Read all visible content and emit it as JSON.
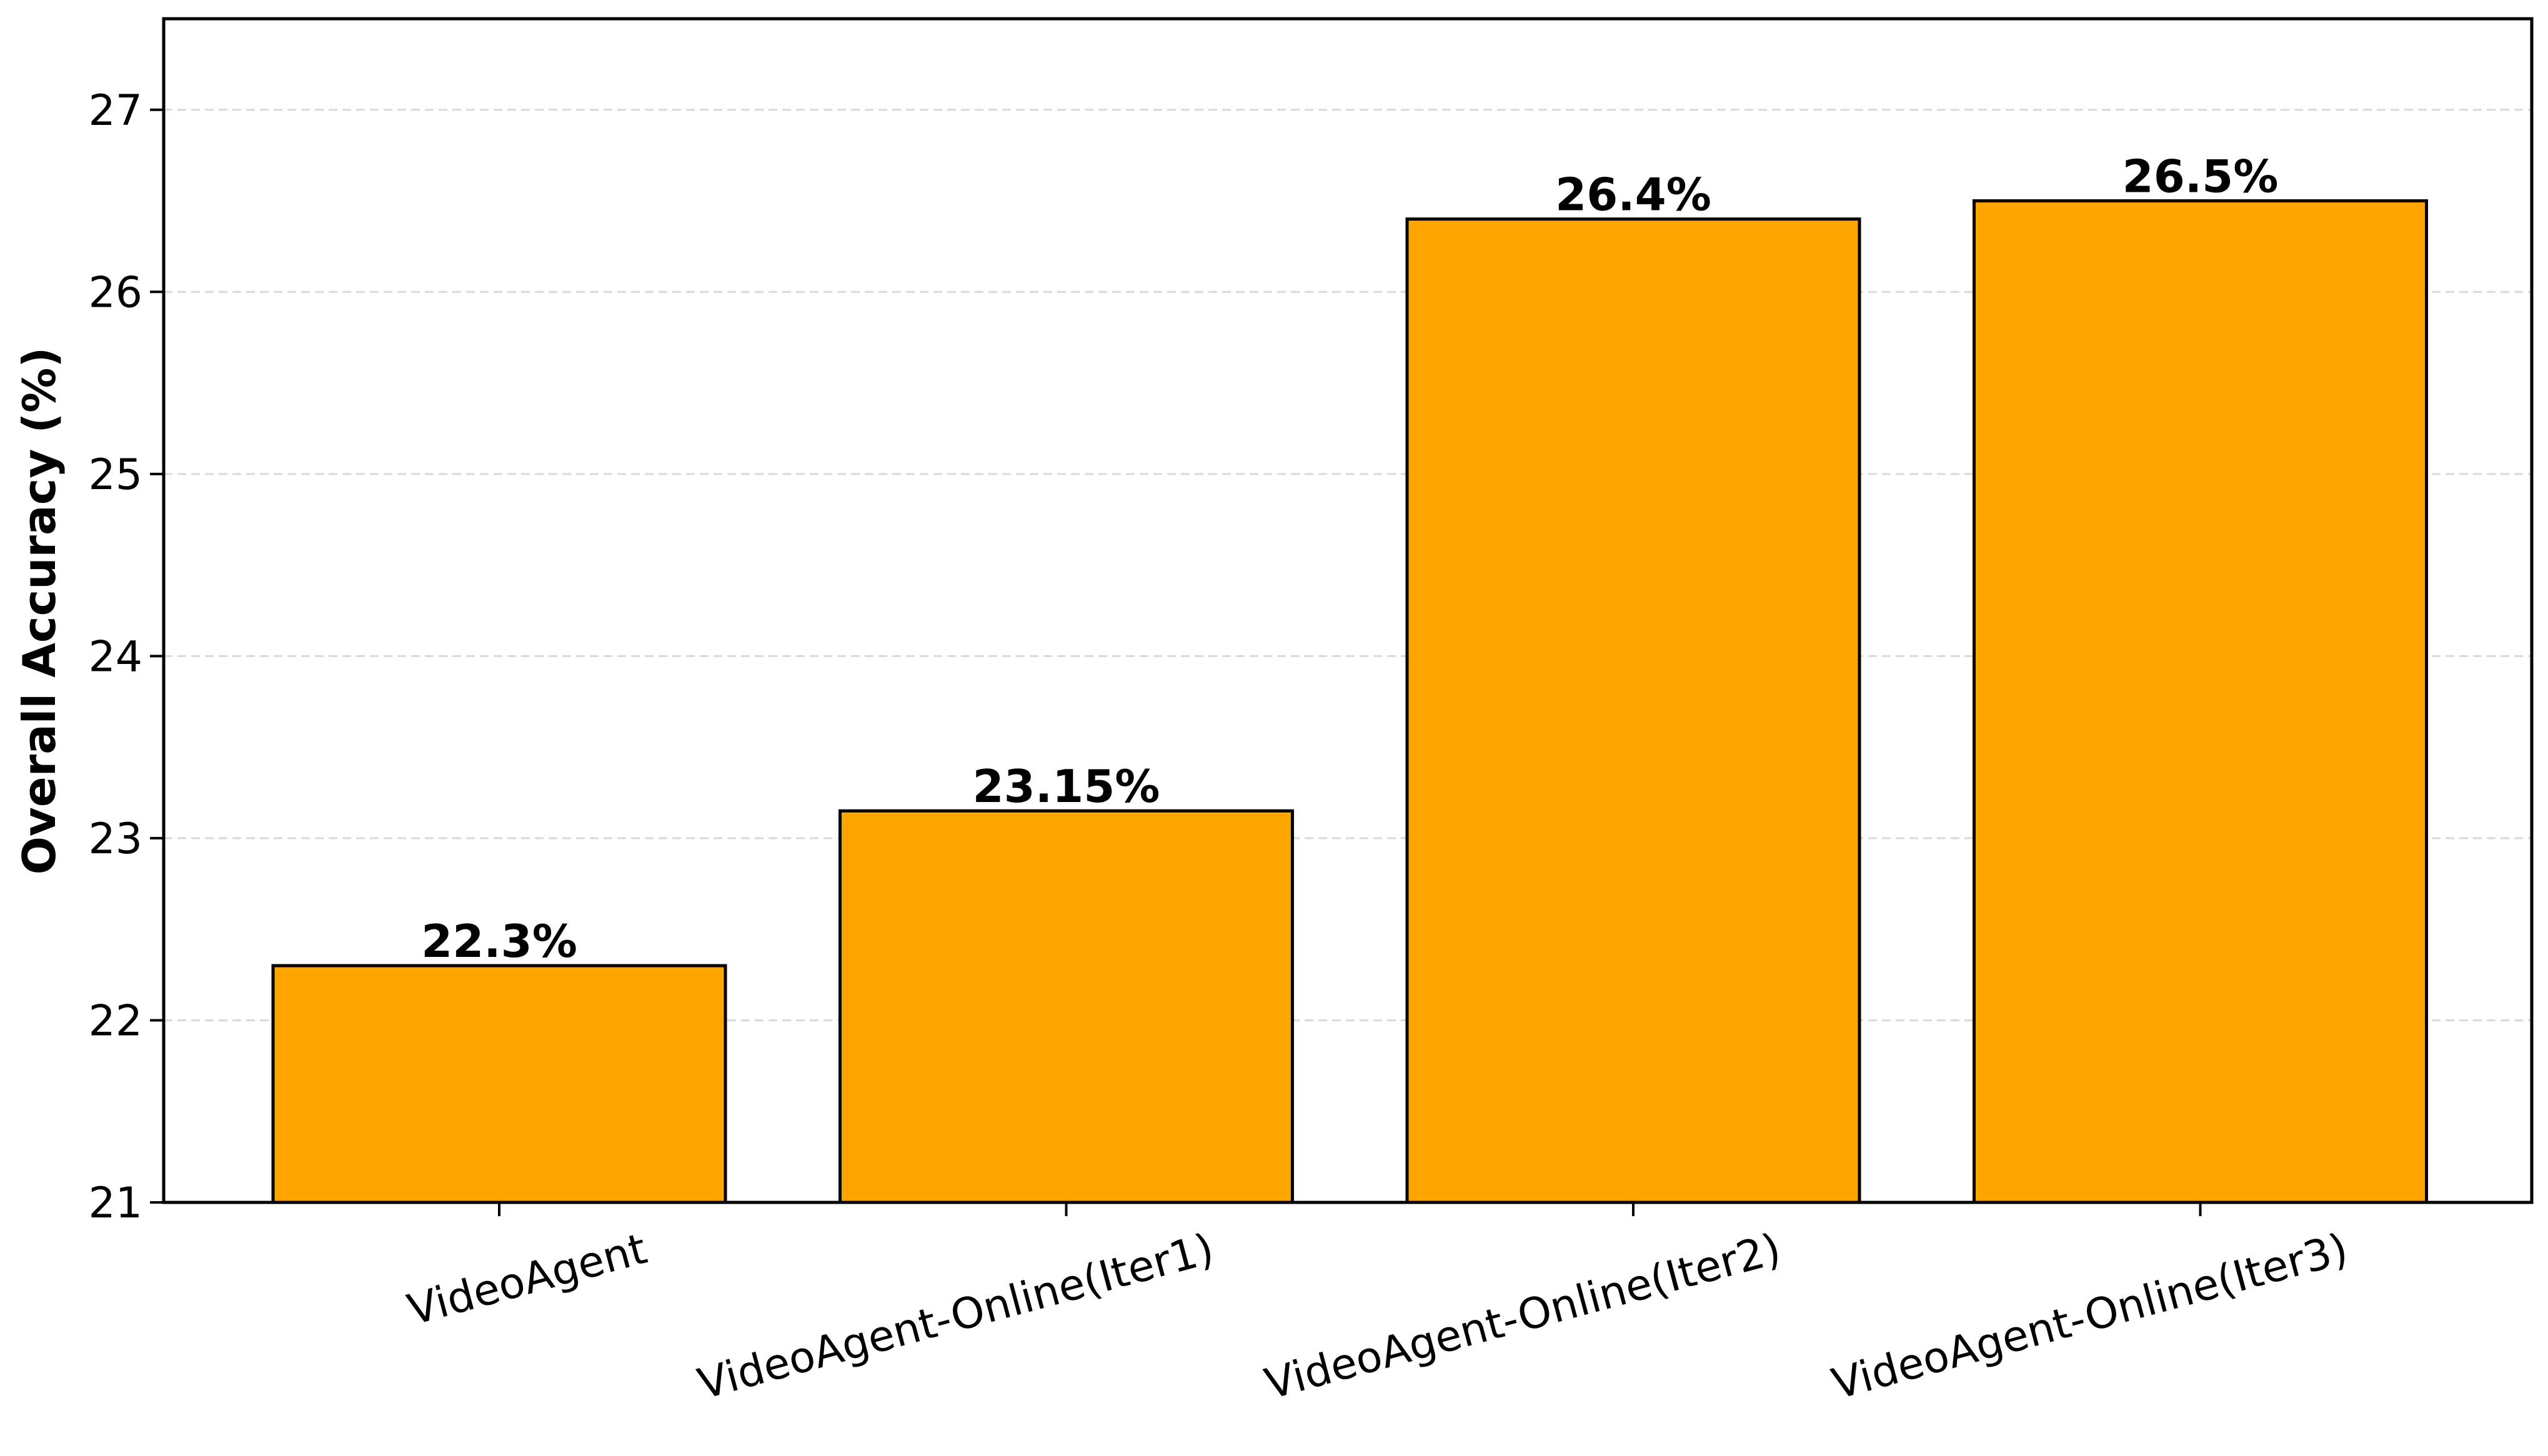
{
  "chart_data": {
    "type": "bar",
    "title": "",
    "xlabel": "",
    "ylabel": "Overall Accuracy (%)",
    "categories": [
      "VideoAgent",
      "VideoAgent-Online(Iter1)",
      "VideoAgent-Online(Iter2)",
      "VideoAgent-Online(Iter3)"
    ],
    "values": [
      22.3,
      23.15,
      26.4,
      26.5
    ],
    "value_labels": [
      "22.3%",
      "23.15%",
      "26.4%",
      "26.5%"
    ],
    "ylim": [
      21,
      27.5
    ],
    "yticks": [
      21,
      22,
      23,
      24,
      25,
      26,
      27
    ],
    "grid": "y-dashed",
    "legend": "none",
    "colors": {
      "bar_fill": "#FFA500",
      "bar_edge": "#000000",
      "grid": "#d9d9d9"
    }
  }
}
